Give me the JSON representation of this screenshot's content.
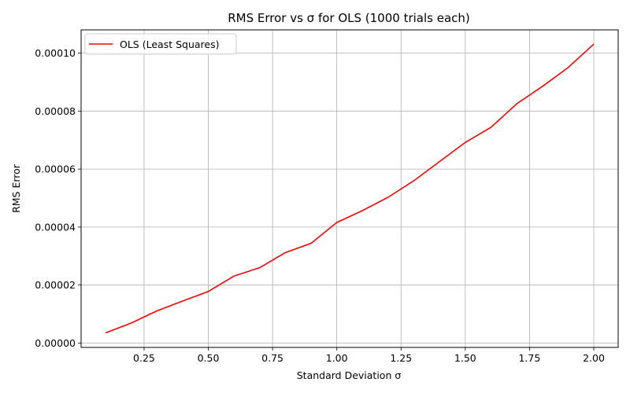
{
  "chart_data": {
    "type": "line",
    "title": "RMS Error vs σ for OLS (1000 trials each)",
    "xlabel": "Standard Deviation σ",
    "ylabel": "RMS Error",
    "xlim": [
      0.005,
      2.095
    ],
    "ylim": [
      -1.5e-06,
      0.000108
    ],
    "xticks": [
      0.25,
      0.5,
      0.75,
      1.0,
      1.25,
      1.5,
      1.75,
      2.0
    ],
    "xtick_labels": [
      "0.25",
      "0.50",
      "0.75",
      "1.00",
      "1.25",
      "1.50",
      "1.75",
      "2.00"
    ],
    "yticks": [
      0,
      2e-05,
      4e-05,
      6e-05,
      8e-05,
      0.0001
    ],
    "ytick_labels": [
      "0.00000",
      "0.00002",
      "0.00004",
      "0.00006",
      "0.00008",
      "0.00010"
    ],
    "grid": true,
    "legend_position": "top-left",
    "series": [
      {
        "name": "OLS (Least Squares)",
        "color": "#ff0000",
        "x": [
          0.1,
          0.2,
          0.3,
          0.4,
          0.5,
          0.6,
          0.7,
          0.8,
          0.9,
          1.0,
          1.1,
          1.2,
          1.3,
          1.4,
          1.5,
          1.6,
          1.7,
          1.8,
          1.9,
          2.0
        ],
        "y": [
          3.5e-06,
          6.9e-06,
          1.11e-05,
          1.45e-05,
          1.78e-05,
          2.31e-05,
          2.6e-05,
          3.12e-05,
          3.44e-05,
          4.16e-05,
          4.57e-05,
          5.03e-05,
          5.6e-05,
          6.26e-05,
          6.92e-05,
          7.44e-05,
          8.25e-05,
          8.85e-05,
          9.5e-05,
          0.0001031
        ]
      }
    ]
  }
}
